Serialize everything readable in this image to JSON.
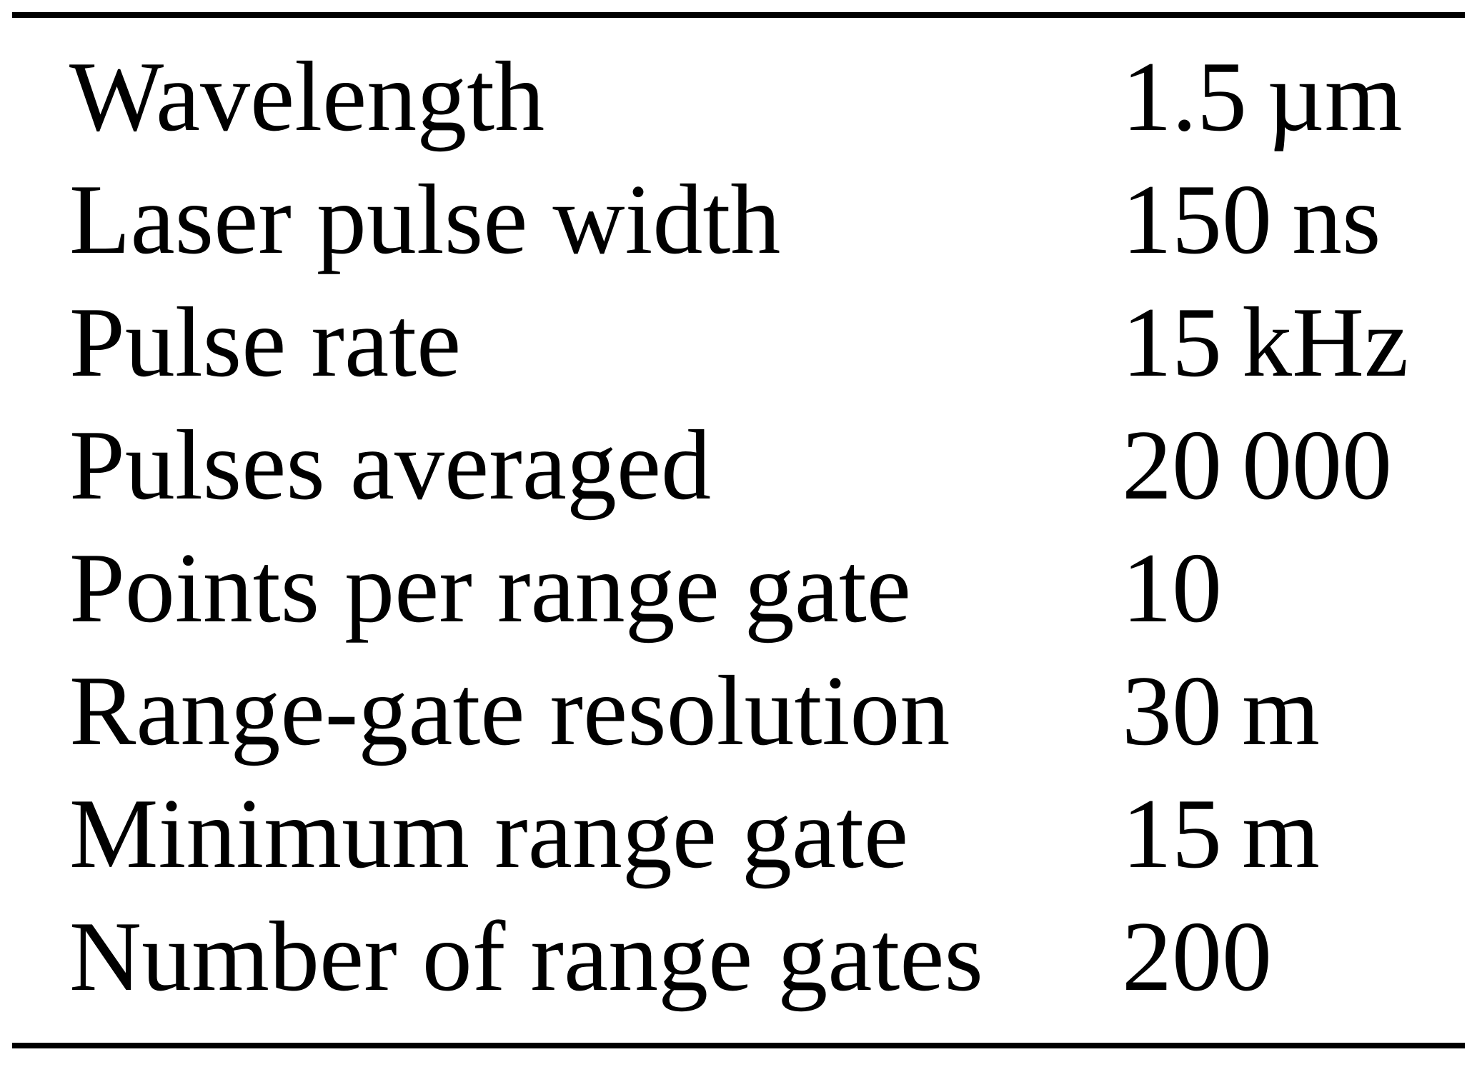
{
  "table": {
    "rows": [
      {
        "label": "Wavelength",
        "value": "1.5 µm"
      },
      {
        "label": "Laser pulse width",
        "value": "150 ns"
      },
      {
        "label": "Pulse rate",
        "value": "15 kHz"
      },
      {
        "label": "Pulses averaged",
        "value": "20 000"
      },
      {
        "label": "Points per range gate",
        "value": "10"
      },
      {
        "label": "Range-gate resolution",
        "value": "30 m"
      },
      {
        "label": "Minimum range gate",
        "value": "15 m"
      },
      {
        "label": "Number of range gates",
        "value": "200"
      }
    ]
  }
}
